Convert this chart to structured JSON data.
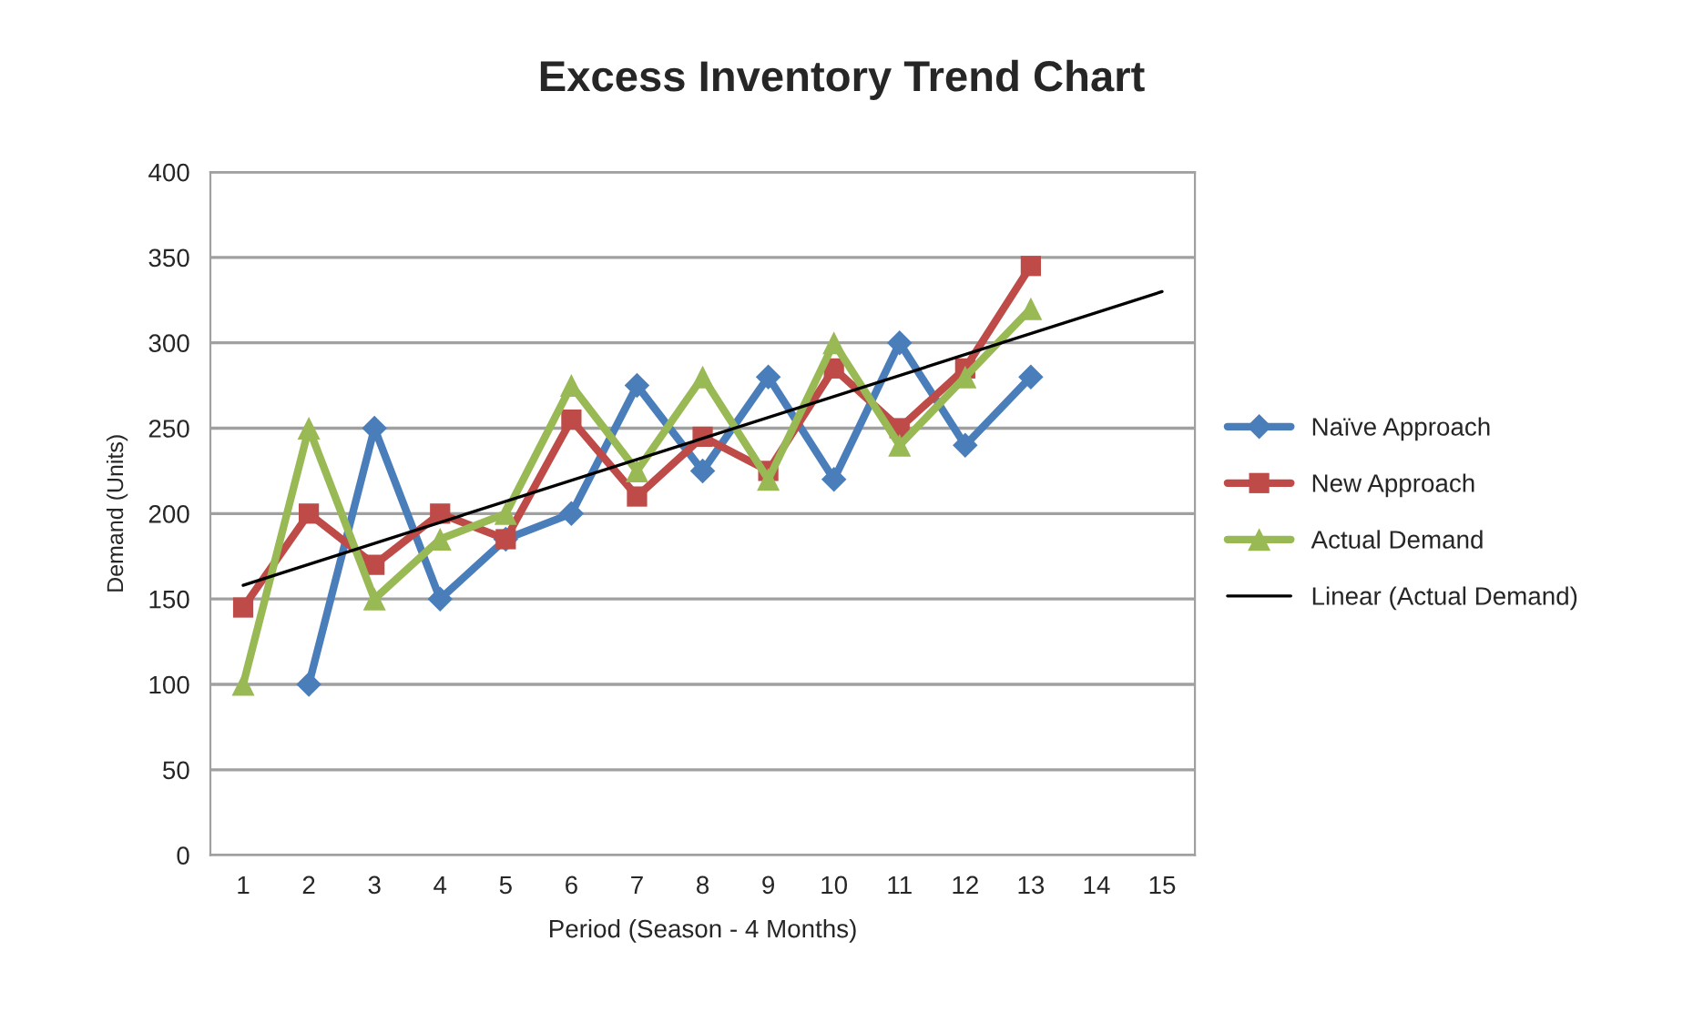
{
  "chart_data": {
    "type": "line",
    "title": "Excess Inventory Trend Chart",
    "xlabel": "Period (Season - 4 Months)",
    "ylabel": "Demand (Units)",
    "xlim": [
      0.5,
      15.5
    ],
    "xticks": [
      1,
      2,
      3,
      4,
      5,
      6,
      7,
      8,
      9,
      10,
      11,
      12,
      13,
      14,
      15
    ],
    "ylim": [
      0,
      400
    ],
    "yticks": [
      0,
      50,
      100,
      150,
      200,
      250,
      300,
      350,
      400
    ],
    "grid": "y",
    "legend": "right",
    "series": [
      {
        "name": "Naïve Approach",
        "color": "#4a7ebb",
        "marker": "diamond",
        "x": [
          2,
          3,
          4,
          5,
          6,
          7,
          8,
          9,
          10,
          11,
          12,
          13
        ],
        "values": [
          100,
          250,
          150,
          185,
          200,
          275,
          225,
          280,
          220,
          300,
          240,
          280
        ]
      },
      {
        "name": "New Approach",
        "color": "#be4b48",
        "marker": "square",
        "x": [
          1,
          2,
          3,
          4,
          5,
          6,
          7,
          8,
          9,
          10,
          11,
          12,
          13
        ],
        "values": [
          145,
          200,
          170,
          200,
          185,
          255,
          210,
          245,
          225,
          285,
          250,
          285,
          345
        ]
      },
      {
        "name": "Actual Demand",
        "color": "#98b954",
        "marker": "triangle",
        "x": [
          1,
          2,
          3,
          4,
          5,
          6,
          7,
          8,
          9,
          10,
          11,
          12,
          13
        ],
        "values": [
          100,
          250,
          150,
          185,
          200,
          275,
          225,
          280,
          220,
          300,
          240,
          280,
          320
        ]
      },
      {
        "name": "Linear (Actual Demand)",
        "color": "#000000",
        "marker": "none",
        "x": [
          1,
          15
        ],
        "values": [
          158,
          330
        ]
      }
    ]
  }
}
